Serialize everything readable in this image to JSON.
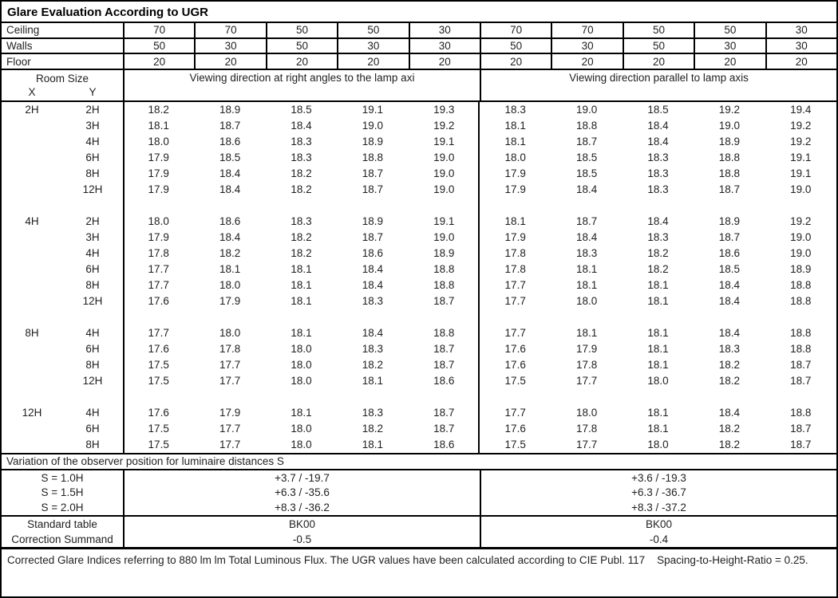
{
  "title": "Glare Evaluation According to UGR",
  "surface": {
    "rows": [
      {
        "label": "Ceiling",
        "values": [
          "70",
          "70",
          "50",
          "50",
          "30",
          "70",
          "70",
          "50",
          "50",
          "30"
        ]
      },
      {
        "label": "Walls",
        "values": [
          "50",
          "30",
          "50",
          "30",
          "30",
          "50",
          "30",
          "50",
          "30",
          "30"
        ]
      },
      {
        "label": "Floor",
        "values": [
          "20",
          "20",
          "20",
          "20",
          "20",
          "20",
          "20",
          "20",
          "20",
          "20"
        ]
      }
    ]
  },
  "header": {
    "room_size": "Room Size",
    "x_label": "X",
    "y_label": "Y",
    "left_title": "Viewing direction at right angles to the lamp axi",
    "right_title": "Viewing direction parallel to lamp axis"
  },
  "ugr": {
    "groups": [
      {
        "x": "2H",
        "rows": [
          {
            "y": "2H",
            "values": [
              "18.2",
              "18.9",
              "18.5",
              "19.1",
              "19.3",
              "18.3",
              "19.0",
              "18.5",
              "19.2",
              "19.4"
            ]
          },
          {
            "y": "3H",
            "values": [
              "18.1",
              "18.7",
              "18.4",
              "19.0",
              "19.2",
              "18.1",
              "18.8",
              "18.4",
              "19.0",
              "19.2"
            ]
          },
          {
            "y": "4H",
            "values": [
              "18.0",
              "18.6",
              "18.3",
              "18.9",
              "19.1",
              "18.1",
              "18.7",
              "18.4",
              "18.9",
              "19.2"
            ]
          },
          {
            "y": "6H",
            "values": [
              "17.9",
              "18.5",
              "18.3",
              "18.8",
              "19.0",
              "18.0",
              "18.5",
              "18.3",
              "18.8",
              "19.1"
            ]
          },
          {
            "y": "8H",
            "values": [
              "17.9",
              "18.4",
              "18.2",
              "18.7",
              "19.0",
              "17.9",
              "18.5",
              "18.3",
              "18.8",
              "19.1"
            ]
          },
          {
            "y": "12H",
            "values": [
              "17.9",
              "18.4",
              "18.2",
              "18.7",
              "19.0",
              "17.9",
              "18.4",
              "18.3",
              "18.7",
              "19.0"
            ]
          }
        ]
      },
      {
        "x": "4H",
        "rows": [
          {
            "y": "2H",
            "values": [
              "18.0",
              "18.6",
              "18.3",
              "18.9",
              "19.1",
              "18.1",
              "18.7",
              "18.4",
              "18.9",
              "19.2"
            ]
          },
          {
            "y": "3H",
            "values": [
              "17.9",
              "18.4",
              "18.2",
              "18.7",
              "19.0",
              "17.9",
              "18.4",
              "18.3",
              "18.7",
              "19.0"
            ]
          },
          {
            "y": "4H",
            "values": [
              "17.8",
              "18.2",
              "18.2",
              "18.6",
              "18.9",
              "17.8",
              "18.3",
              "18.2",
              "18.6",
              "19.0"
            ]
          },
          {
            "y": "6H",
            "values": [
              "17.7",
              "18.1",
              "18.1",
              "18.4",
              "18.8",
              "17.8",
              "18.1",
              "18.2",
              "18.5",
              "18.9"
            ]
          },
          {
            "y": "8H",
            "values": [
              "17.7",
              "18.0",
              "18.1",
              "18.4",
              "18.8",
              "17.7",
              "18.1",
              "18.1",
              "18.4",
              "18.8"
            ]
          },
          {
            "y": "12H",
            "values": [
              "17.6",
              "17.9",
              "18.1",
              "18.3",
              "18.7",
              "17.7",
              "18.0",
              "18.1",
              "18.4",
              "18.8"
            ]
          }
        ]
      },
      {
        "x": "8H",
        "rows": [
          {
            "y": "4H",
            "values": [
              "17.7",
              "18.0",
              "18.1",
              "18.4",
              "18.8",
              "17.7",
              "18.1",
              "18.1",
              "18.4",
              "18.8"
            ]
          },
          {
            "y": "6H",
            "values": [
              "17.6",
              "17.8",
              "18.0",
              "18.3",
              "18.7",
              "17.6",
              "17.9",
              "18.1",
              "18.3",
              "18.8"
            ]
          },
          {
            "y": "8H",
            "values": [
              "17.5",
              "17.7",
              "18.0",
              "18.2",
              "18.7",
              "17.6",
              "17.8",
              "18.1",
              "18.2",
              "18.7"
            ]
          },
          {
            "y": "12H",
            "values": [
              "17.5",
              "17.7",
              "18.0",
              "18.1",
              "18.6",
              "17.5",
              "17.7",
              "18.0",
              "18.2",
              "18.7"
            ]
          }
        ]
      },
      {
        "x": "12H",
        "rows": [
          {
            "y": "4H",
            "values": [
              "17.6",
              "17.9",
              "18.1",
              "18.3",
              "18.7",
              "17.7",
              "18.0",
              "18.1",
              "18.4",
              "18.8"
            ]
          },
          {
            "y": "6H",
            "values": [
              "17.5",
              "17.7",
              "18.0",
              "18.2",
              "18.7",
              "17.6",
              "17.8",
              "18.1",
              "18.2",
              "18.7"
            ]
          },
          {
            "y": "8H",
            "values": [
              "17.5",
              "17.7",
              "18.0",
              "18.1",
              "18.6",
              "17.5",
              "17.7",
              "18.0",
              "18.2",
              "18.7"
            ]
          }
        ]
      }
    ]
  },
  "variation": {
    "title": "Variation of the observer position for luminaire distances S",
    "rows": [
      {
        "label": "S = 1.0H",
        "left": "+3.7 / -19.7",
        "right": "+3.6 / -19.3"
      },
      {
        "label": "S = 1.5H",
        "left": "+6.3 / -35.6",
        "right": "+6.3 / -36.7"
      },
      {
        "label": "S = 2.0H",
        "left": "+8.3 / -36.2",
        "right": "+8.3 / -37.2"
      }
    ]
  },
  "summary": {
    "rows": [
      {
        "label": "Standard table",
        "left": "BK00",
        "right": "BK00"
      },
      {
        "label": "Correction Summand",
        "left": "-0.5",
        "right": "-0.4"
      }
    ]
  },
  "footer": "Corrected Glare Indices referring to 880 lm lm Total Luminous Flux. The UGR values have been calculated according to CIE Publ. 117    Spacing-to-Height-Ratio = 0.25."
}
